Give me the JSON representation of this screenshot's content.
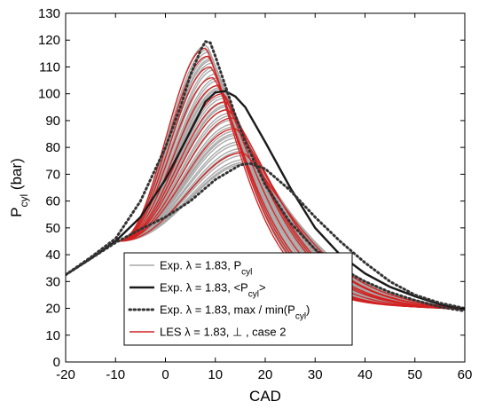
{
  "chart_data": {
    "type": "line",
    "title": "",
    "xlabel": "CAD",
    "ylabel": "P_cyl (bar)",
    "xlim": [
      -20,
      60
    ],
    "ylim": [
      0,
      130
    ],
    "x_ticks": [
      -20,
      -10,
      0,
      10,
      20,
      30,
      40,
      50,
      60
    ],
    "y_ticks": [
      0,
      10,
      20,
      30,
      40,
      50,
      60,
      70,
      80,
      90,
      100,
      110,
      120,
      130
    ],
    "grid": false,
    "legend_position": "lower-center",
    "colors": {
      "experimental_cycles": "#a9a9a9",
      "mean": "#1a1a1a",
      "envelope": "#333333",
      "les": "#d42020"
    },
    "legend": [
      {
        "style": "solid-gray",
        "text": "Exp. λ = 1.83, P",
        "sub": "cyl",
        "after": ""
      },
      {
        "style": "solid-black",
        "text": "Exp. λ = 1.83, <P",
        "sub": "cyl",
        "after": ">"
      },
      {
        "style": "dotted-black",
        "text": "Exp. λ = 1.83, max / min(P",
        "sub": "cyl",
        "after": ")"
      },
      {
        "style": "solid-red",
        "text": "LES λ = 1.83, ⊥ , case 2",
        "sub": "",
        "after": ""
      }
    ],
    "series": [
      {
        "name": "Exp. λ = 1.83, <Pcyl>",
        "kind": "mean",
        "points": [
          [
            -20,
            32.5
          ],
          [
            -15,
            38.5
          ],
          [
            -10,
            45
          ],
          [
            -5,
            54
          ],
          [
            0,
            68
          ],
          [
            5,
            86
          ],
          [
            8,
            97
          ],
          [
            10,
            100.5
          ],
          [
            12,
            101
          ],
          [
            14,
            99
          ],
          [
            16,
            95
          ],
          [
            20,
            82
          ],
          [
            25,
            65
          ],
          [
            30,
            50
          ],
          [
            35,
            40
          ],
          [
            40,
            33
          ],
          [
            45,
            28
          ],
          [
            50,
            24.5
          ],
          [
            55,
            21.5
          ],
          [
            60,
            19.5
          ]
        ]
      },
      {
        "name": "Exp. λ = 1.83, max(Pcyl)",
        "kind": "envelope",
        "points": [
          [
            -20,
            32.5
          ],
          [
            -15,
            39
          ],
          [
            -10,
            46
          ],
          [
            -5,
            60
          ],
          [
            0,
            80
          ],
          [
            3,
            95
          ],
          [
            5,
            107
          ],
          [
            7,
            116
          ],
          [
            8,
            119.5
          ],
          [
            9,
            119
          ],
          [
            10,
            114
          ],
          [
            12,
            103
          ],
          [
            14,
            92
          ],
          [
            16,
            82
          ],
          [
            20,
            66
          ],
          [
            25,
            52
          ],
          [
            30,
            42
          ],
          [
            35,
            35
          ],
          [
            40,
            30
          ],
          [
            45,
            26
          ],
          [
            50,
            23
          ],
          [
            55,
            20.5
          ],
          [
            60,
            19
          ]
        ]
      },
      {
        "name": "Exp. λ = 1.83, min(Pcyl)",
        "kind": "envelope",
        "points": [
          [
            -20,
            32.5
          ],
          [
            -15,
            38.5
          ],
          [
            -10,
            44.5
          ],
          [
            -5,
            49.5
          ],
          [
            0,
            54
          ],
          [
            5,
            60
          ],
          [
            10,
            68
          ],
          [
            15,
            73.5
          ],
          [
            17,
            74
          ],
          [
            20,
            72
          ],
          [
            25,
            64
          ],
          [
            30,
            54
          ],
          [
            35,
            45
          ],
          [
            40,
            37
          ],
          [
            45,
            30
          ],
          [
            50,
            25
          ],
          [
            55,
            22
          ],
          [
            60,
            20
          ]
        ]
      }
    ],
    "cycle_family": {
      "name": "Exp. λ = 1.83, Pcyl",
      "description_free": true,
      "count": 40,
      "peak_range": [
        74,
        119
      ],
      "peak_cad_range": [
        8,
        16.5
      ]
    },
    "les_cycles": [
      {
        "peak": 117,
        "peak_cad": 8
      },
      {
        "peak": 114,
        "peak_cad": 8.5
      },
      {
        "peak": 110,
        "peak_cad": 9
      },
      {
        "peak": 106,
        "peak_cad": 9.5
      },
      {
        "peak": 103,
        "peak_cad": 10.5
      },
      {
        "peak": 100,
        "peak_cad": 11.5
      },
      {
        "peak": 97,
        "peak_cad": 12
      },
      {
        "peak": 94,
        "peak_cad": 12.5
      },
      {
        "peak": 91,
        "peak_cad": 13.5
      },
      {
        "peak": 87,
        "peak_cad": 14
      },
      {
        "peak": 78,
        "peak_cad": 15.5
      }
    ]
  }
}
